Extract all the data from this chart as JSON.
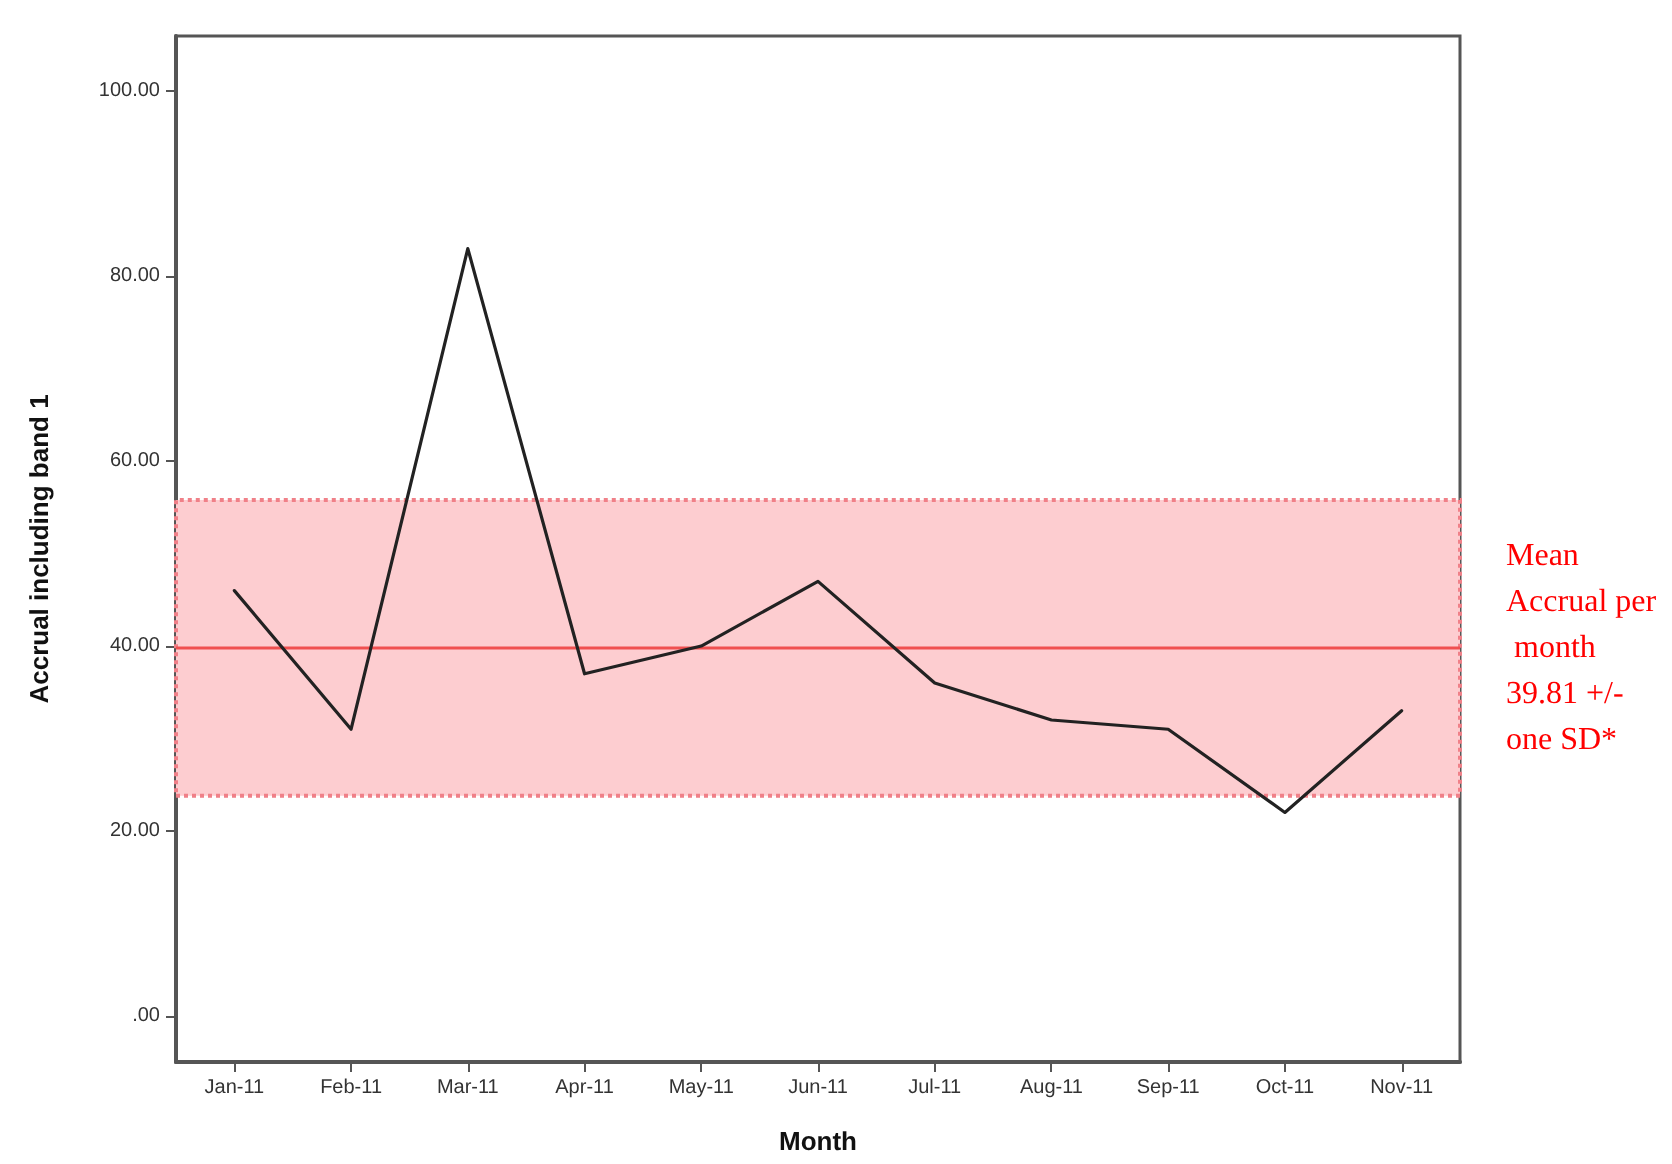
{
  "chart_data": {
    "type": "line",
    "xlabel": "Month",
    "ylabel": "Accrual including band 1",
    "categories": [
      "Jan-11",
      "Feb-11",
      "Mar-11",
      "Apr-11",
      "May-11",
      "Jun-11",
      "Jul-11",
      "Aug-11",
      "Sep-11",
      "Oct-11",
      "Nov-11"
    ],
    "series": [
      {
        "color": "#222222",
        "values": [
          46,
          31,
          83,
          37,
          40,
          47,
          36,
          32,
          31,
          22,
          33
        ]
      }
    ],
    "ylim": [
      -5,
      106
    ],
    "yticks": [
      {
        "value": 0,
        "label": ".00"
      },
      {
        "value": 20,
        "label": "20.00"
      },
      {
        "value": 40,
        "label": "40.00"
      },
      {
        "value": 60,
        "label": "60.00"
      },
      {
        "value": 80,
        "label": "80.00"
      },
      {
        "value": 100,
        "label": "100.00"
      }
    ],
    "ref_lines": [
      {
        "axis": "y",
        "value": 39.81,
        "color": "#f05050"
      }
    ],
    "bands": [
      {
        "axis": "y",
        "from": 23.8,
        "to": 55.8,
        "label": "Mean Accrual per month 39.81 +/- one SD*",
        "color": "#fdcdd0"
      }
    ],
    "marker": "none",
    "line_style": "solid"
  }
}
